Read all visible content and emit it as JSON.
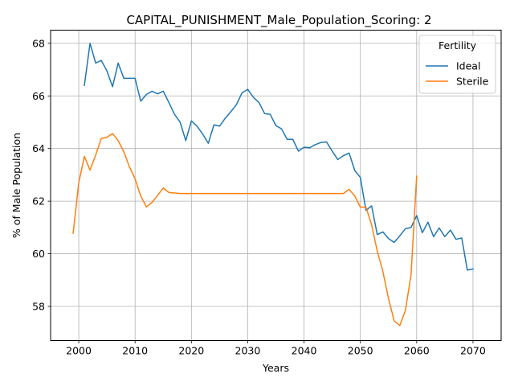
{
  "chart_data": {
    "type": "line",
    "title": "CAPITAL_PUNISHMENT_Male_Population_Scoring: 2",
    "xlabel": "Years",
    "ylabel": "% of Male Population",
    "xlim": [
      1995,
      2075
    ],
    "ylim": [
      56.7,
      68.5
    ],
    "xticks": [
      2000,
      2010,
      2020,
      2030,
      2040,
      2050,
      2060,
      2070
    ],
    "yticks": [
      58,
      60,
      62,
      64,
      66,
      68
    ],
    "grid": true,
    "legend": {
      "title": "Fertility",
      "placement": "top-right"
    },
    "series": [
      {
        "name": "Ideal",
        "color": "#1f77b4",
        "x": [
          2001,
          2002,
          2003,
          2004,
          2005,
          2006,
          2007,
          2008,
          2009,
          2010,
          2011,
          2012,
          2013,
          2014,
          2015,
          2016,
          2017,
          2018,
          2019,
          2020,
          2021,
          2022,
          2023,
          2024,
          2025,
          2026,
          2027,
          2028,
          2029,
          2030,
          2031,
          2032,
          2033,
          2034,
          2035,
          2036,
          2037,
          2038,
          2039,
          2040,
          2041,
          2042,
          2043,
          2044,
          2045,
          2046,
          2047,
          2048,
          2049,
          2050,
          2051,
          2052,
          2053,
          2054,
          2055,
          2056,
          2057,
          2058,
          2059,
          2060,
          2061,
          2062,
          2063,
          2064,
          2065,
          2066,
          2067,
          2068,
          2069,
          2070
        ],
        "values": [
          66.4,
          68.0,
          67.25,
          67.35,
          66.95,
          66.35,
          67.25,
          66.67,
          66.67,
          66.67,
          65.8,
          66.05,
          66.18,
          66.08,
          66.18,
          65.75,
          65.3,
          65.0,
          64.3,
          65.05,
          64.85,
          64.55,
          64.2,
          64.9,
          64.85,
          65.15,
          65.4,
          65.67,
          66.12,
          66.25,
          65.95,
          65.75,
          65.33,
          65.3,
          64.87,
          64.75,
          64.35,
          64.35,
          63.9,
          64.05,
          64.03,
          64.15,
          64.23,
          64.25,
          63.9,
          63.58,
          63.73,
          63.83,
          63.17,
          62.9,
          61.65,
          61.82,
          60.73,
          60.83,
          60.58,
          60.43,
          60.68,
          60.95,
          61.0,
          61.45,
          60.8,
          61.2,
          60.65,
          60.98,
          60.65,
          60.9,
          60.55,
          60.6,
          59.38,
          59.42
        ]
      },
      {
        "name": "Sterile",
        "color": "#ff7f0e",
        "x": [
          1999,
          2000,
          2001,
          2002,
          2003,
          2004,
          2005,
          2006,
          2007,
          2008,
          2009,
          2010,
          2011,
          2012,
          2013,
          2014,
          2015,
          2016,
          2017,
          2018,
          2019,
          2020,
          2021,
          2022,
          2023,
          2024,
          2025,
          2026,
          2027,
          2028,
          2029,
          2030,
          2031,
          2032,
          2033,
          2034,
          2035,
          2036,
          2037,
          2038,
          2039,
          2040,
          2041,
          2042,
          2043,
          2044,
          2045,
          2046,
          2047,
          2048,
          2049,
          2050,
          2051,
          2052,
          2053,
          2054,
          2055,
          2056,
          2057,
          2058,
          2059,
          2060
        ],
        "values": [
          60.78,
          62.7,
          63.7,
          63.18,
          63.75,
          64.38,
          64.43,
          64.57,
          64.3,
          63.88,
          63.3,
          62.85,
          62.2,
          61.78,
          61.95,
          62.22,
          62.5,
          62.33,
          62.31,
          62.29,
          62.29,
          62.29,
          62.29,
          62.29,
          62.29,
          62.29,
          62.29,
          62.29,
          62.29,
          62.29,
          62.29,
          62.29,
          62.29,
          62.29,
          62.29,
          62.29,
          62.29,
          62.29,
          62.29,
          62.29,
          62.29,
          62.29,
          62.29,
          62.29,
          62.29,
          62.29,
          62.29,
          62.29,
          62.29,
          62.45,
          62.2,
          61.77,
          61.77,
          61.1,
          60.1,
          59.33,
          58.3,
          57.45,
          57.27,
          57.85,
          59.2,
          62.95
        ]
      }
    ]
  }
}
